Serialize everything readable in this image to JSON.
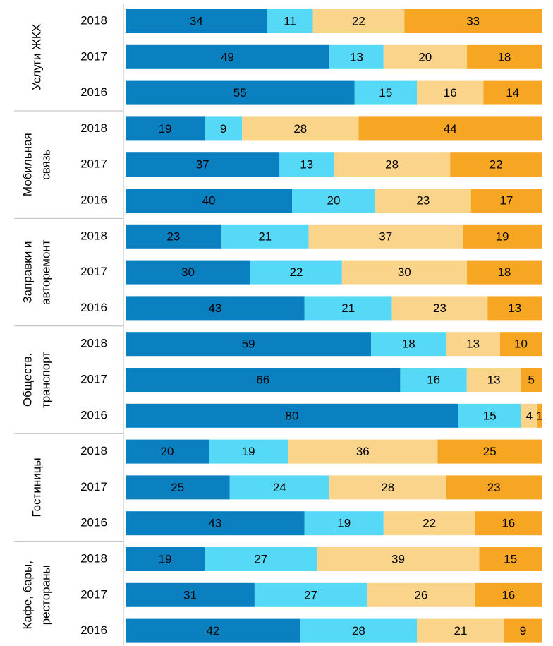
{
  "chart_data": {
    "type": "bar",
    "orientation": "horizontal",
    "stacked": true,
    "xlim": [
      0,
      100
    ],
    "groups": [
      {
        "label": [
          "Услуги ЖКХ"
        ],
        "size": 3
      },
      {
        "label": [
          "Мобильная",
          "связь"
        ],
        "size": 3
      },
      {
        "label": [
          "Заправки и",
          "авторемонт"
        ],
        "size": 3
      },
      {
        "label": [
          "Обществ.",
          "транспорт"
        ],
        "size": 3
      },
      {
        "label": [
          "Гостиницы"
        ],
        "size": 3
      },
      {
        "label": [
          "Кафе, бары,",
          "рестораны"
        ],
        "size": 3
      }
    ],
    "categories": [
      "2018",
      "2017",
      "2016",
      "2018",
      "2017",
      "2016",
      "2018",
      "2017",
      "2016",
      "2018",
      "2017",
      "2016",
      "2018",
      "2017",
      "2016",
      "2018",
      "2017",
      "2016"
    ],
    "series": [
      {
        "color": "#0a80c0",
        "values": [
          34,
          49,
          55,
          19,
          37,
          40,
          23,
          30,
          43,
          59,
          66,
          80,
          20,
          25,
          43,
          19,
          31,
          42
        ]
      },
      {
        "color": "#56d8f7",
        "values": [
          11,
          13,
          15,
          9,
          13,
          20,
          21,
          22,
          21,
          18,
          16,
          15,
          19,
          24,
          19,
          27,
          27,
          28
        ]
      },
      {
        "color": "#fbd48b",
        "values": [
          22,
          20,
          16,
          28,
          28,
          23,
          37,
          30,
          23,
          13,
          13,
          4,
          36,
          28,
          22,
          39,
          26,
          21
        ]
      },
      {
        "color": "#f6a623",
        "values": [
          33,
          18,
          14,
          44,
          22,
          17,
          19,
          18,
          13,
          10,
          5,
          1,
          25,
          23,
          16,
          15,
          16,
          9
        ]
      }
    ]
  }
}
